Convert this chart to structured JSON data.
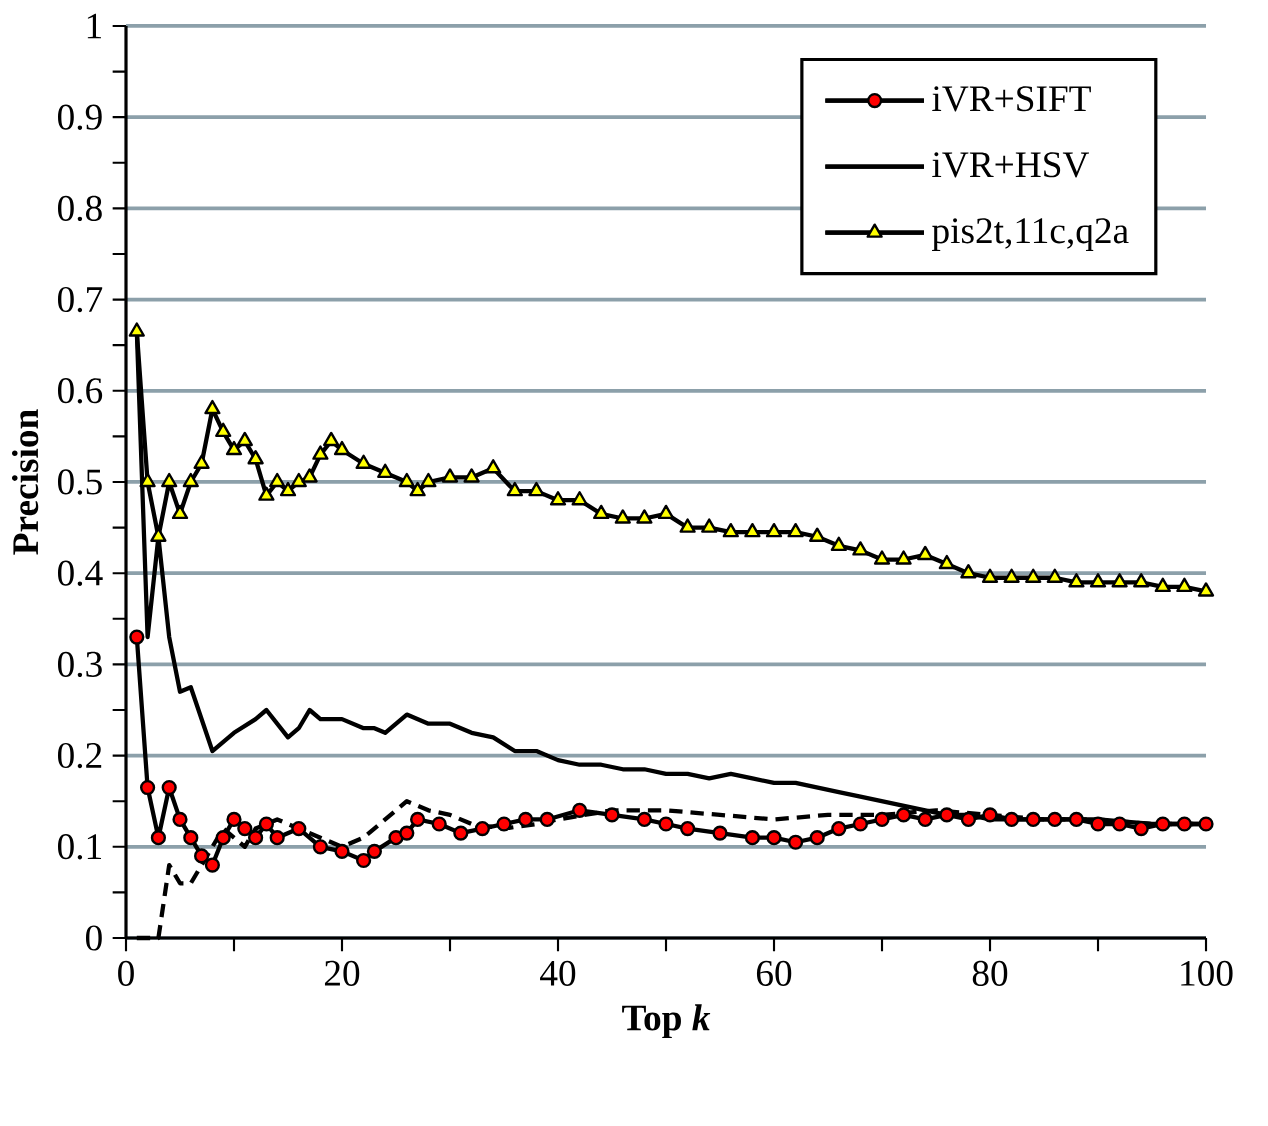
{
  "chart_data": {
    "type": "line",
    "xlabel": "Top *k*",
    "ylabel": "Precision",
    "xlim": [
      0,
      100
    ],
    "ylim": [
      0,
      1
    ],
    "xticks": [
      0,
      {
        "value": 10,
        "label": null
      },
      20,
      {
        "value": 30,
        "label": null
      },
      40,
      {
        "value": 50,
        "label": null
      },
      60,
      {
        "value": 70,
        "label": null
      },
      80,
      {
        "value": 90,
        "label": null
      },
      100
    ],
    "yticks": [
      0,
      {
        "value": 0.05,
        "label": null
      },
      0.1,
      {
        "value": 0.15,
        "label": null
      },
      0.2,
      {
        "value": 0.25,
        "label": null
      },
      0.3,
      {
        "value": 0.35,
        "label": null
      },
      0.4,
      {
        "value": 0.45,
        "label": null
      },
      0.5,
      {
        "value": 0.55,
        "label": null
      },
      0.6,
      {
        "value": 0.65,
        "label": null
      },
      0.7,
      {
        "value": 0.75,
        "label": null
      },
      0.8,
      {
        "value": 0.85,
        "label": null
      },
      0.9,
      {
        "value": 0.95,
        "label": null
      },
      1
    ],
    "grid": "y",
    "legend": "top right",
    "series": [
      {
        "color": "#000000",
        "line_style": "dashed",
        "marker": "none",
        "x": [
          1,
          2,
          3,
          4,
          5,
          6,
          7,
          8,
          9,
          10,
          11,
          12,
          14,
          16,
          18,
          20,
          22,
          24,
          26,
          28,
          30,
          32,
          35,
          38,
          40,
          45,
          50,
          55,
          60,
          65,
          70,
          75,
          80,
          85,
          90,
          95,
          100
        ],
        "values": [
          0,
          0,
          0,
          0.08,
          0.06,
          0.06,
          0.08,
          0.1,
          0.12,
          0.11,
          0.1,
          0.12,
          0.13,
          0.12,
          0.11,
          0.1,
          0.11,
          0.13,
          0.15,
          0.14,
          0.135,
          0.125,
          0.12,
          0.125,
          0.13,
          0.14,
          0.14,
          0.135,
          0.13,
          0.135,
          0.135,
          0.14,
          0.135,
          0.13,
          0.13,
          0.125,
          0.125
        ]
      },
      {
        "name": "iVR+SIFT",
        "color": "#ff0000",
        "line_style": "solid",
        "marker": "circle",
        "x": [
          1,
          2,
          3,
          4,
          5,
          6,
          7,
          8,
          9,
          10,
          11,
          12,
          13,
          14,
          16,
          18,
          20,
          22,
          23,
          25,
          26,
          27,
          29,
          31,
          33,
          35,
          37,
          39,
          42,
          45,
          48,
          50,
          52,
          55,
          58,
          60,
          62,
          64,
          66,
          68,
          70,
          72,
          74,
          76,
          78,
          80,
          82,
          84,
          86,
          88,
          90,
          92,
          94,
          96,
          98,
          100
        ],
        "values": [
          0.33,
          0.165,
          0.11,
          0.165,
          0.13,
          0.11,
          0.09,
          0.08,
          0.11,
          0.13,
          0.12,
          0.11,
          0.125,
          0.11,
          0.12,
          0.1,
          0.095,
          0.085,
          0.095,
          0.11,
          0.115,
          0.13,
          0.125,
          0.115,
          0.12,
          0.125,
          0.13,
          0.13,
          0.14,
          0.135,
          0.13,
          0.125,
          0.12,
          0.115,
          0.11,
          0.11,
          0.105,
          0.11,
          0.12,
          0.125,
          0.13,
          0.135,
          0.13,
          0.135,
          0.13,
          0.135,
          0.13,
          0.13,
          0.13,
          0.13,
          0.125,
          0.125,
          0.12,
          0.125,
          0.125,
          0.125
        ]
      },
      {
        "name": "iVR+HSV",
        "color": "#000000",
        "line_style": "solid",
        "marker": "none",
        "x": [
          1,
          2,
          3,
          4,
          5,
          6,
          7,
          8,
          10,
          12,
          13,
          14,
          15,
          16,
          17,
          18,
          20,
          21,
          22,
          23,
          24,
          26,
          28,
          30,
          32,
          34,
          36,
          38,
          40,
          42,
          44,
          46,
          48,
          50,
          52,
          54,
          56,
          58,
          60,
          62,
          64,
          66,
          68,
          70,
          72,
          74,
          76,
          78,
          80,
          85,
          90,
          95,
          100
        ],
        "values": [
          0.665,
          0.33,
          0.44,
          0.33,
          0.27,
          0.275,
          0.24,
          0.205,
          0.225,
          0.24,
          0.25,
          0.235,
          0.22,
          0.23,
          0.25,
          0.24,
          0.24,
          0.235,
          0.23,
          0.23,
          0.225,
          0.245,
          0.235,
          0.235,
          0.225,
          0.22,
          0.205,
          0.205,
          0.195,
          0.19,
          0.19,
          0.185,
          0.185,
          0.18,
          0.18,
          0.175,
          0.18,
          0.175,
          0.17,
          0.17,
          0.165,
          0.16,
          0.155,
          0.15,
          0.145,
          0.14,
          0.135,
          0.135,
          0.13,
          0.13,
          0.13,
          0.125,
          0.125
        ]
      },
      {
        "name": "pis2t,11c,q2a",
        "color": "#ffff00",
        "line_style": "solid",
        "marker": "triangle",
        "x": [
          1,
          2,
          3,
          4,
          5,
          6,
          7,
          8,
          9,
          10,
          11,
          12,
          13,
          14,
          15,
          16,
          17,
          18,
          19,
          20,
          22,
          24,
          26,
          27,
          28,
          30,
          32,
          34,
          36,
          38,
          40,
          42,
          44,
          46,
          48,
          50,
          52,
          54,
          56,
          58,
          60,
          62,
          64,
          66,
          68,
          70,
          72,
          74,
          76,
          78,
          80,
          82,
          84,
          86,
          88,
          90,
          92,
          94,
          96,
          98,
          100
        ],
        "values": [
          0.665,
          0.5,
          0.44,
          0.5,
          0.465,
          0.5,
          0.52,
          0.58,
          0.555,
          0.535,
          0.545,
          0.525,
          0.485,
          0.5,
          0.49,
          0.5,
          0.505,
          0.53,
          0.545,
          0.535,
          0.52,
          0.51,
          0.5,
          0.49,
          0.5,
          0.505,
          0.505,
          0.515,
          0.49,
          0.49,
          0.48,
          0.48,
          0.465,
          0.46,
          0.46,
          0.465,
          0.45,
          0.45,
          0.445,
          0.445,
          0.445,
          0.445,
          0.44,
          0.43,
          0.425,
          0.415,
          0.415,
          0.42,
          0.41,
          0.4,
          0.395,
          0.395,
          0.395,
          0.395,
          0.39,
          0.39,
          0.39,
          0.39,
          0.385,
          0.385,
          0.38
        ]
      }
    ]
  }
}
